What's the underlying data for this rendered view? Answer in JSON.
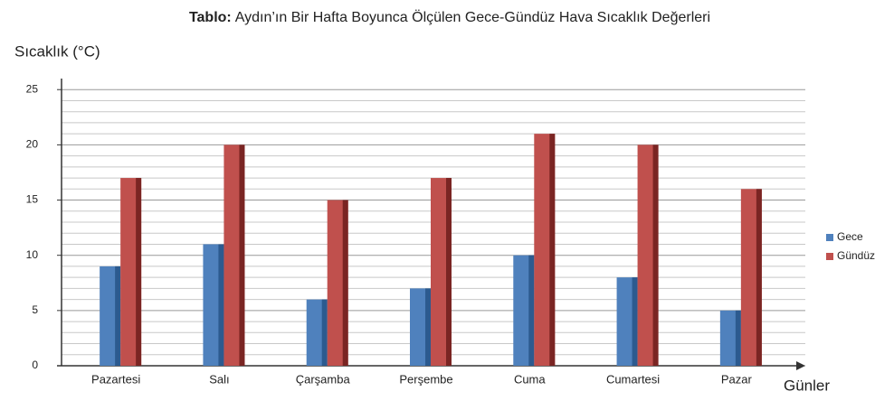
{
  "chart_data": {
    "type": "bar",
    "title_label": "Tablo:",
    "title": "Aydın’ın Bir Hafta Boyunca Ölçülen Gece-Gündüz Hava Sıcaklık Değerleri",
    "y_label": "Sıcaklık (°C)",
    "x_label": "Günler",
    "categories": [
      "Pazartesi",
      "Salı",
      "Çarşamba",
      "Perşembe",
      "Cuma",
      "Cumartesi",
      "Pazar"
    ],
    "series": [
      {
        "name": "Gece",
        "color": "#4f81bd",
        "side_color": "#2c5a8f",
        "values": [
          9,
          11,
          6,
          7,
          10,
          8,
          5
        ]
      },
      {
        "name": "Gündüz",
        "color": "#c0504d",
        "side_color": "#7a2523",
        "values": [
          17,
          20,
          15,
          17,
          21,
          20,
          16
        ]
      }
    ],
    "ylim": [
      0,
      26
    ],
    "yticks": [
      0,
      5,
      10,
      15,
      20,
      25
    ],
    "minor_yticks": [
      1,
      2,
      3,
      4,
      6,
      7,
      8,
      9,
      11,
      12,
      13,
      14,
      16,
      17,
      18,
      19,
      21,
      22,
      23,
      24
    ],
    "grid": true,
    "legend": "right"
  }
}
